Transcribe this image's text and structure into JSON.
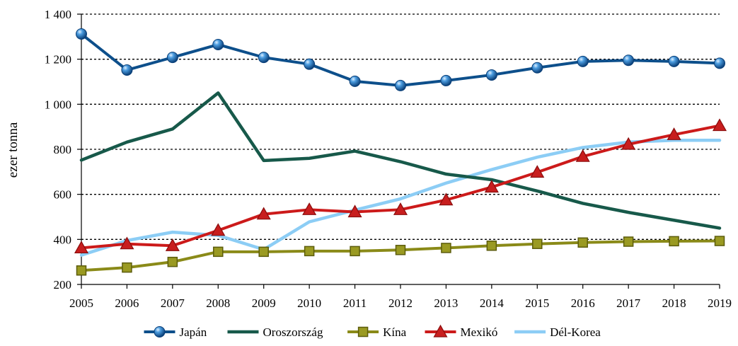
{
  "chart_data": {
    "type": "line",
    "ylabel": "ezer tonna",
    "ylim": [
      200,
      1400
    ],
    "yticks": [
      200,
      400,
      600,
      800,
      1000,
      1200,
      1400
    ],
    "ytick_labels": [
      "200",
      "400",
      "600",
      "800",
      "1 000",
      "1 200",
      "1 400"
    ],
    "x": [
      "2005",
      "2006",
      "2007",
      "2008",
      "2009",
      "2010",
      "2011",
      "2012",
      "2013",
      "2014",
      "2015",
      "2016",
      "2017",
      "2018",
      "2019"
    ],
    "grid": "horizontal dotted",
    "legend_position": "bottom",
    "series": [
      {
        "name": "Japán",
        "color": "#0d4f8b",
        "marker": "sphere",
        "values": [
          1312,
          1152,
          1208,
          1265,
          1208,
          1178,
          1102,
          1083,
          1105,
          1130,
          1162,
          1190,
          1195,
          1190,
          1182
        ]
      },
      {
        "name": "Oroszország",
        "color": "#17594a",
        "marker": "none",
        "values": [
          752,
          832,
          890,
          1050,
          750,
          760,
          792,
          745,
          690,
          665,
          615,
          560,
          520,
          485,
          450
        ]
      },
      {
        "name": "Kína",
        "color": "#8a8a18",
        "marker": "square",
        "values": [
          262,
          275,
          300,
          345,
          345,
          348,
          348,
          353,
          362,
          372,
          380,
          386,
          390,
          392,
          393
        ]
      },
      {
        "name": "Mexikó",
        "color": "#cc1a1a",
        "marker": "triangle",
        "values": [
          362,
          380,
          372,
          440,
          512,
          532,
          522,
          532,
          575,
          632,
          698,
          768,
          822,
          865,
          905
        ]
      },
      {
        "name": "Dél-Korea",
        "color": "#8ccdf5",
        "marker": "none",
        "values": [
          330,
          395,
          432,
          418,
          355,
          478,
          530,
          580,
          650,
          710,
          765,
          808,
          832,
          840,
          840
        ]
      }
    ]
  }
}
